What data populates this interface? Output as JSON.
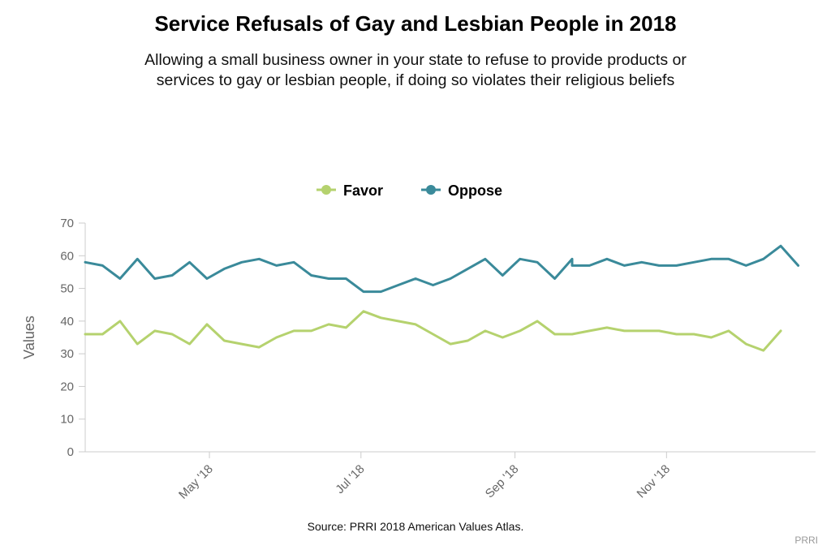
{
  "title": "Service Refusals of Gay and Lesbian People in 2018",
  "subtitle": "Allowing a small business owner in your state to refuse to provide products or services to gay or lesbian people, if doing so violates their religious beliefs",
  "source": "Source: PRRI 2018 American Values Atlas.",
  "credit": "PRRI",
  "chart_data": {
    "type": "line",
    "ylabel": "Values",
    "ylim": [
      0,
      70
    ],
    "yticks": [
      0,
      10,
      20,
      30,
      40,
      50,
      60,
      70
    ],
    "xtick_labels": [
      {
        "label": "May '18",
        "x": "2018-05-01"
      },
      {
        "label": "Jul '18",
        "x": "2018-07-01"
      },
      {
        "label": "Sep '18",
        "x": "2018-09-01"
      },
      {
        "label": "Nov '18",
        "x": "2018-11-01"
      }
    ],
    "xlim": [
      "2018-03-12",
      "2018-12-31"
    ],
    "grid": false,
    "legend_position": "top-center",
    "colors": {
      "Favor": "#b5d26e",
      "Oppose": "#3a8a9a"
    },
    "series": [
      {
        "name": "Favor",
        "points": [
          [
            "2018-03-12",
            36
          ],
          [
            "2018-03-19",
            36
          ],
          [
            "2018-03-26",
            40
          ],
          [
            "2018-04-02",
            33
          ],
          [
            "2018-04-09",
            37
          ],
          [
            "2018-04-16",
            36
          ],
          [
            "2018-04-23",
            33
          ],
          [
            "2018-04-30",
            39
          ],
          [
            "2018-05-07",
            34
          ],
          [
            "2018-05-14",
            33
          ],
          [
            "2018-05-21",
            32
          ],
          [
            "2018-05-28",
            35
          ],
          [
            "2018-06-04",
            37
          ],
          [
            "2018-06-11",
            37
          ],
          [
            "2018-06-18",
            39
          ],
          [
            "2018-06-25",
            38
          ],
          [
            "2018-07-02",
            43
          ],
          [
            "2018-07-09",
            41
          ],
          [
            "2018-07-16",
            40
          ],
          [
            "2018-07-23",
            39
          ],
          [
            "2018-07-30",
            36
          ],
          [
            "2018-08-06",
            33
          ],
          [
            "2018-08-13",
            34
          ],
          [
            "2018-08-20",
            37
          ],
          [
            "2018-08-27",
            35
          ],
          [
            "2018-09-03",
            37
          ],
          [
            "2018-09-10",
            40
          ],
          [
            "2018-09-17",
            36
          ],
          [
            "2018-09-24",
            36
          ],
          [
            "2018-10-01",
            37
          ],
          [
            "2018-10-08",
            38
          ],
          [
            "2018-10-15",
            37
          ],
          [
            "2018-10-22",
            37
          ],
          [
            "2018-10-29",
            37
          ],
          [
            "2018-11-05",
            36
          ],
          [
            "2018-11-12",
            36
          ],
          [
            "2018-11-19",
            35
          ],
          [
            "2018-11-26",
            37
          ],
          [
            "2018-12-03",
            33
          ],
          [
            "2018-12-10",
            31
          ],
          [
            "2018-12-17",
            37
          ]
        ]
      },
      {
        "name": "Oppose",
        "points": [
          [
            "2018-03-12",
            58
          ],
          [
            "2018-03-19",
            57
          ],
          [
            "2018-03-26",
            53
          ],
          [
            "2018-04-02",
            59
          ],
          [
            "2018-04-09",
            53
          ],
          [
            "2018-04-16",
            54
          ],
          [
            "2018-04-23",
            58
          ],
          [
            "2018-04-30",
            53
          ],
          [
            "2018-05-07",
            56
          ],
          [
            "2018-05-14",
            58
          ],
          [
            "2018-05-21",
            59
          ],
          [
            "2018-05-28",
            57
          ],
          [
            "2018-06-04",
            58
          ],
          [
            "2018-06-11",
            54
          ],
          [
            "2018-06-18",
            53
          ],
          [
            "2018-06-25",
            53
          ],
          [
            "2018-07-02",
            49
          ],
          [
            "2018-07-09",
            49
          ],
          [
            "2018-07-16",
            51
          ],
          [
            "2018-07-23",
            53
          ],
          [
            "2018-07-30",
            51
          ],
          [
            "2018-08-06",
            53
          ],
          [
            "2018-08-13",
            56
          ],
          [
            "2018-08-20",
            59
          ],
          [
            "2018-08-27",
            54
          ],
          [
            "2018-09-03",
            59
          ],
          [
            "2018-09-10",
            58
          ],
          [
            "2018-09-17",
            53
          ],
          [
            "2018-09-24",
            59
          ],
          [
            "2018-09-24",
            57
          ],
          [
            "2018-10-01",
            57
          ],
          [
            "2018-10-08",
            59
          ],
          [
            "2018-10-15",
            57
          ],
          [
            "2018-10-22",
            58
          ],
          [
            "2018-10-29",
            57
          ],
          [
            "2018-11-05",
            57
          ],
          [
            "2018-11-12",
            58
          ],
          [
            "2018-11-19",
            59
          ],
          [
            "2018-11-26",
            59
          ],
          [
            "2018-12-03",
            57
          ],
          [
            "2018-12-10",
            59
          ],
          [
            "2018-12-17",
            63
          ],
          [
            "2018-12-24",
            57
          ]
        ]
      }
    ]
  }
}
